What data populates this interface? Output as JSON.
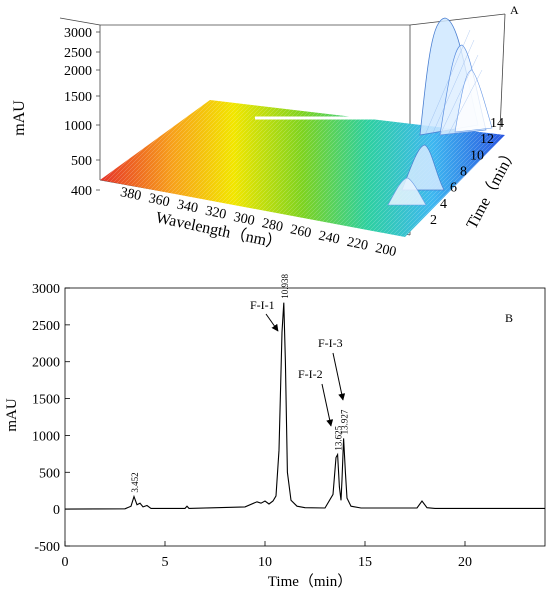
{
  "chart_data": [
    {
      "panel_label": "A",
      "type": "surface3d",
      "zlabel": "mAU",
      "xlabel": "Wavelength（nm）",
      "ylabel": "Time（min）",
      "z_ticks": [
        400,
        500,
        1000,
        1500,
        2000,
        2500,
        3000
      ],
      "wavelength_ticks": [
        380,
        360,
        340,
        320,
        300,
        280,
        260,
        240,
        220,
        200
      ],
      "time_ticks": [
        2,
        4,
        6,
        8,
        10,
        12,
        14
      ],
      "colormap": [
        "#e6332a",
        "#f7a21b",
        "#f2e600",
        "#7ed321",
        "#2fd0a0",
        "#3fb8f0",
        "#2a55e0"
      ]
    },
    {
      "panel_label": "B",
      "type": "line",
      "xlabel": "Time（min）",
      "ylabel": "mAU",
      "xlim": [
        0,
        24
      ],
      "ylim": [
        -500,
        3000
      ],
      "x_ticks": [
        0,
        5,
        10,
        15,
        20
      ],
      "y_ticks": [
        -500,
        0,
        500,
        1000,
        1500,
        2000,
        2500,
        3000
      ],
      "grid": false,
      "series": [
        {
          "x": [
            0,
            3.0,
            3.3,
            3.45,
            3.6,
            3.75,
            3.9,
            4.1,
            4.3,
            6.0,
            6.1,
            6.2,
            9.0,
            9.6,
            9.8,
            10.0,
            10.2,
            10.4,
            10.55,
            10.7,
            10.85,
            10.94,
            11.02,
            11.12,
            11.3,
            11.6,
            12.0,
            13.0,
            13.4,
            13.55,
            13.63,
            13.72,
            13.8,
            13.85,
            13.93,
            14.02,
            14.1,
            14.3,
            14.8,
            17.6,
            17.85,
            18.1,
            18.5,
            24
          ],
          "y": [
            0,
            5,
            40,
            170,
            60,
            80,
            30,
            50,
            10,
            10,
            40,
            10,
            30,
            100,
            80,
            110,
            70,
            110,
            180,
            800,
            2400,
            2800,
            2000,
            500,
            120,
            40,
            20,
            15,
            200,
            700,
            740,
            300,
            120,
            400,
            960,
            500,
            150,
            40,
            15,
            15,
            110,
            20,
            10,
            10
          ]
        }
      ],
      "peaks": [
        {
          "rt": 3.452,
          "rt_label": "3.452",
          "y": 170
        },
        {
          "rt": 10.938,
          "rt_label": "10.938",
          "y": 2800
        },
        {
          "rt": 13.625,
          "rt_label": "13.625",
          "y": 740
        },
        {
          "rt": 13.927,
          "rt_label": "13.927",
          "y": 960
        }
      ],
      "annotations": [
        {
          "text": "F-I-1",
          "points_to_rt": 10.938
        },
        {
          "text": "F-I-2",
          "points_to_rt": 13.625
        },
        {
          "text": "F-I-3",
          "points_to_rt": 13.927
        }
      ]
    }
  ]
}
